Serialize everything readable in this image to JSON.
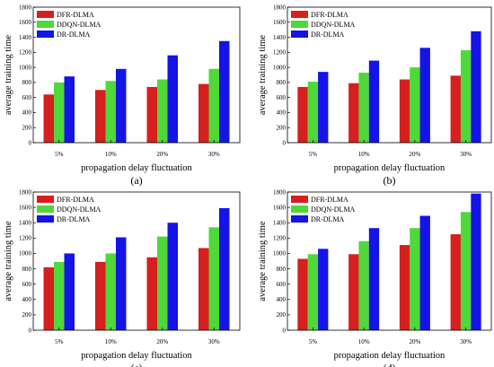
{
  "chart_data": [
    {
      "type": "bar",
      "panel_label": "(a)",
      "categories": [
        "5%",
        "10%",
        "20%",
        "30%"
      ],
      "series": [
        {
          "name": "DFR-DLMA",
          "values": [
            640,
            700,
            740,
            780
          ]
        },
        {
          "name": "DDQN-DLMA",
          "values": [
            800,
            820,
            840,
            980
          ]
        },
        {
          "name": "DR-DLMA",
          "values": [
            880,
            980,
            1160,
            1350
          ]
        }
      ],
      "xlabel": "propagation delay fluctuation",
      "ylabel": "average training time",
      "ylim": [
        0,
        1800
      ],
      "yticks": [
        0,
        200,
        400,
        600,
        800,
        1000,
        1200,
        1400,
        1600,
        1800
      ],
      "legend_position": "top-left",
      "grid": false
    },
    {
      "type": "bar",
      "panel_label": "(b)",
      "categories": [
        "5%",
        "10%",
        "20%",
        "30%"
      ],
      "series": [
        {
          "name": "DFR-DLMA",
          "values": [
            740,
            790,
            840,
            890
          ]
        },
        {
          "name": "DDQN-DLMA",
          "values": [
            810,
            930,
            1000,
            1230
          ]
        },
        {
          "name": "DR-DLMA",
          "values": [
            940,
            1090,
            1260,
            1480
          ]
        }
      ],
      "xlabel": "propagation delay fluctuation",
      "ylabel": "average training time",
      "ylim": [
        0,
        1800
      ],
      "yticks": [
        0,
        200,
        400,
        600,
        800,
        1000,
        1200,
        1400,
        1600,
        1800
      ],
      "legend_position": "top-left",
      "grid": false
    },
    {
      "type": "bar",
      "panel_label": "(c)",
      "categories": [
        "5%",
        "10%",
        "20%",
        "30%"
      ],
      "series": [
        {
          "name": "DFR-DLMA",
          "values": [
            820,
            890,
            950,
            1070
          ]
        },
        {
          "name": "DDQN-DLMA",
          "values": [
            890,
            1000,
            1220,
            1340
          ]
        },
        {
          "name": "DR-DLMA",
          "values": [
            1000,
            1210,
            1400,
            1590
          ]
        }
      ],
      "xlabel": "propagation delay fluctuation",
      "ylabel": "average training time",
      "ylim": [
        0,
        1800
      ],
      "yticks": [
        0,
        200,
        400,
        600,
        800,
        1000,
        1200,
        1400,
        1600,
        1800
      ],
      "legend_position": "top-left",
      "grid": false
    },
    {
      "type": "bar",
      "panel_label": "(d)",
      "categories": [
        "5%",
        "10%",
        "20%",
        "30%"
      ],
      "series": [
        {
          "name": "DFR-DLMA",
          "values": [
            930,
            990,
            1110,
            1250
          ]
        },
        {
          "name": "DDQN-DLMA",
          "values": [
            990,
            1160,
            1330,
            1540
          ]
        },
        {
          "name": "DR-DLMA",
          "values": [
            1060,
            1330,
            1490,
            1780
          ]
        }
      ],
      "xlabel": "propagation delay fluctuation",
      "ylabel": "average training time",
      "ylim": [
        0,
        1800
      ],
      "yticks": [
        0,
        200,
        400,
        600,
        800,
        1000,
        1200,
        1400,
        1600,
        1800
      ],
      "legend_position": "top-left",
      "grid": false
    }
  ],
  "series_colors": [
    "#d61f1f",
    "#4fd83a",
    "#1414e6"
  ]
}
